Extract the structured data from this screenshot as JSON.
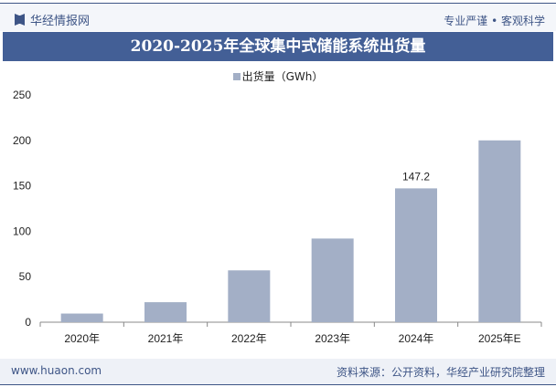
{
  "header": {
    "brand": "华经情报网",
    "slogan": "专业严谨 • 客观科学"
  },
  "title": "2020-2025年全球集中式储能系统出货量",
  "footer": {
    "url": "www.huaon.com",
    "source": "资料来源：公开资料，华经产业研究院整理"
  },
  "colors": {
    "bar": "#a3afc6",
    "title_bg": "#435f96"
  },
  "chart_data": {
    "type": "bar",
    "categories": [
      "2020年",
      "2021年",
      "2022年",
      "2023年",
      "2024年",
      "2025年E"
    ],
    "series": [
      {
        "name": "出货量（GWh）",
        "values": [
          9.5,
          22,
          57,
          92,
          147.2,
          200
        ]
      }
    ],
    "data_labels": {
      "4": "147.2"
    },
    "yticks": [
      0,
      50,
      100,
      150,
      200,
      250
    ],
    "ylim": [
      0,
      250
    ],
    "grid": false,
    "legend": "top"
  }
}
